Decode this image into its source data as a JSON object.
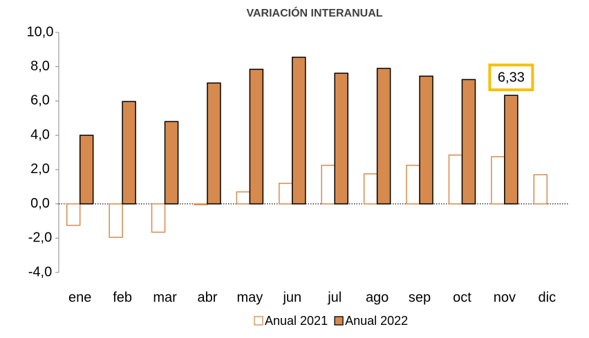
{
  "chart_data": {
    "type": "bar",
    "title": "VARIACIÓN INTERANUAL",
    "categories": [
      "ene",
      "feb",
      "mar",
      "abr",
      "may",
      "jun",
      "jul",
      "ago",
      "sep",
      "oct",
      "nov",
      "dic"
    ],
    "series": [
      {
        "name": "Anual 2021",
        "color": "#d68a4e",
        "fill": "#ffffff",
        "values": [
          -1.25,
          -1.95,
          -1.65,
          -0.05,
          0.7,
          1.2,
          2.25,
          1.75,
          2.25,
          2.85,
          2.75,
          1.7
        ]
      },
      {
        "name": "Anual 2022",
        "color": "#d68a4e",
        "fill": "#d68a4e",
        "values": [
          4.0,
          5.97,
          4.8,
          7.05,
          7.85,
          8.55,
          7.62,
          7.9,
          7.45,
          7.25,
          6.33,
          null
        ],
        "value_labels": [
          null,
          null,
          null,
          null,
          null,
          null,
          null,
          null,
          null,
          null,
          "6,33",
          null
        ]
      }
    ],
    "ylim": [
      -4,
      10
    ],
    "yticks": [
      {
        "value": -4,
        "label": "-4,0"
      },
      {
        "value": -2,
        "label": "-2,0"
      },
      {
        "value": 0,
        "label": "0,0"
      },
      {
        "value": 2,
        "label": "2,0"
      },
      {
        "value": 4,
        "label": "4,0"
      },
      {
        "value": 6,
        "label": "6,0"
      },
      {
        "value": 8,
        "label": "8,0"
      },
      {
        "value": 10,
        "label": "10,0"
      }
    ],
    "grid": false,
    "legend": "bottom"
  }
}
